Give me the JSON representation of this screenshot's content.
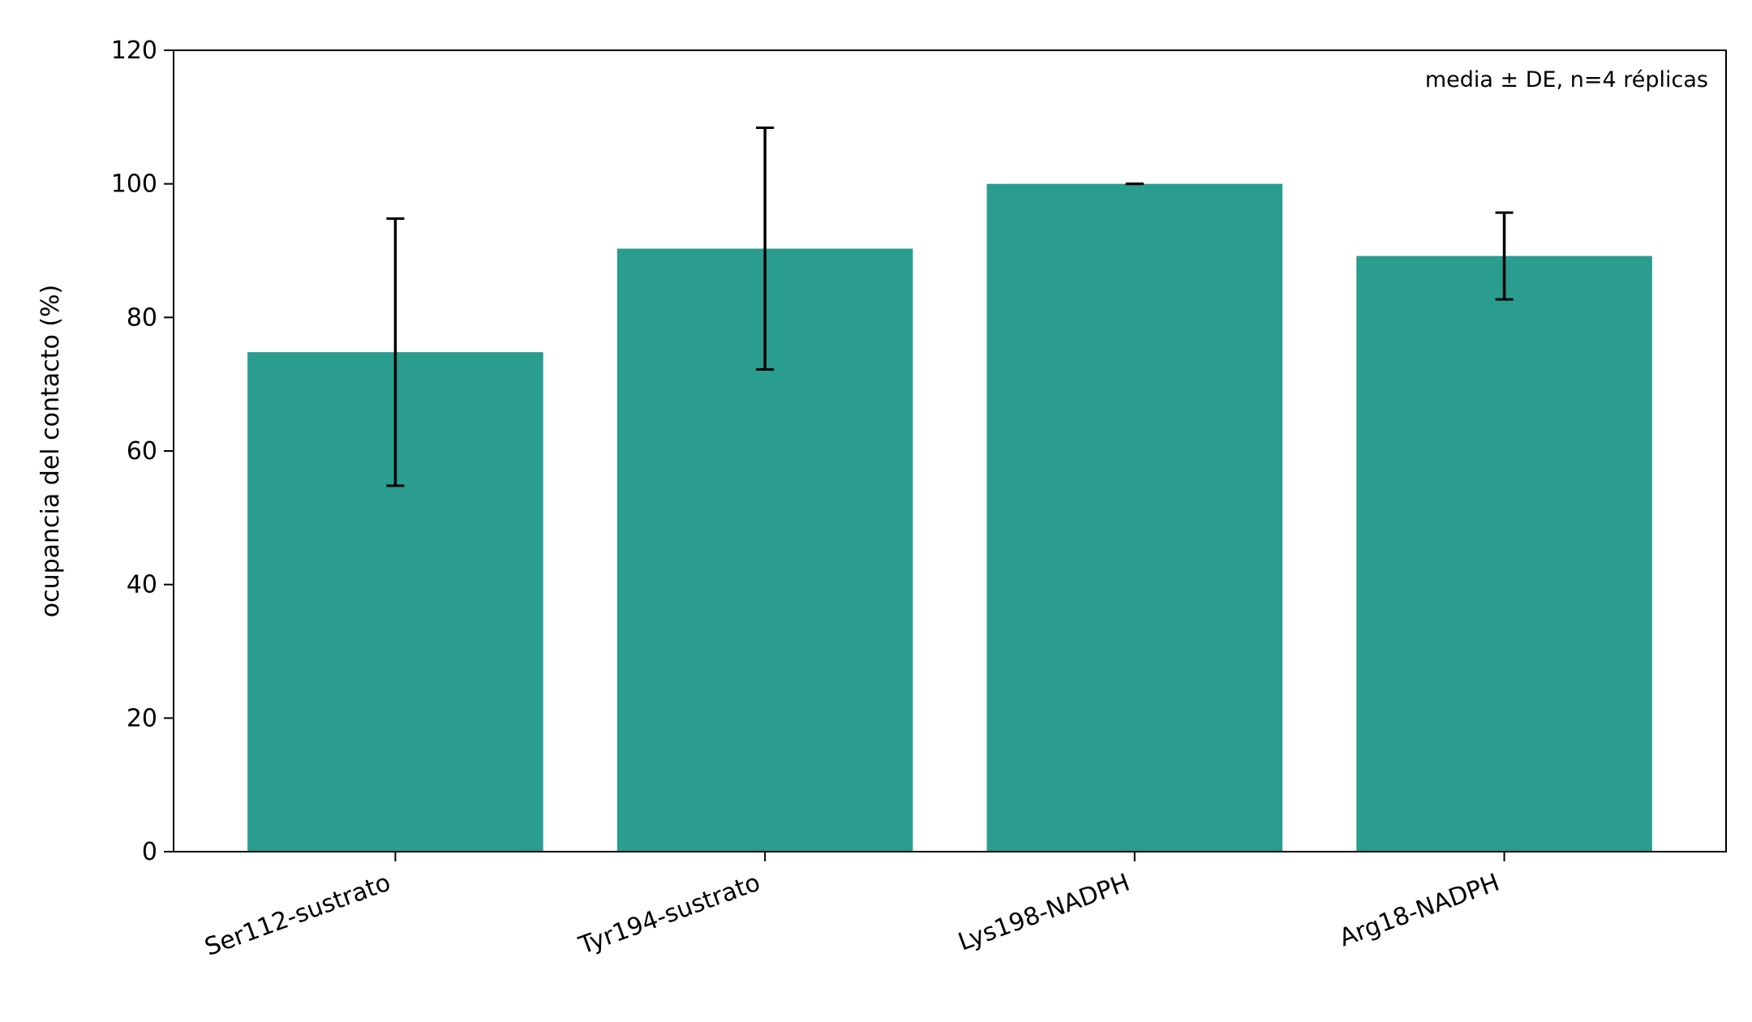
{
  "chart_data": {
    "type": "bar",
    "categories": [
      "Ser112-sustrato",
      "Tyr194-sustrato",
      "Lys198-NADPH",
      "Arg18-NADPH"
    ],
    "values": [
      74.8,
      90.3,
      100.0,
      89.2
    ],
    "errors": [
      20.0,
      18.1,
      0.0,
      6.5
    ],
    "title": "",
    "xlabel": "",
    "ylabel": "ocupancia del contacto (%)",
    "ylim": [
      0,
      120
    ],
    "yticks": [
      0,
      20,
      40,
      60,
      80,
      100,
      120
    ],
    "annotation": "media ± DE, n=4 réplicas",
    "bar_color": "#2a9d8f",
    "error_color": "#000000",
    "grid": false,
    "legend": "none"
  }
}
